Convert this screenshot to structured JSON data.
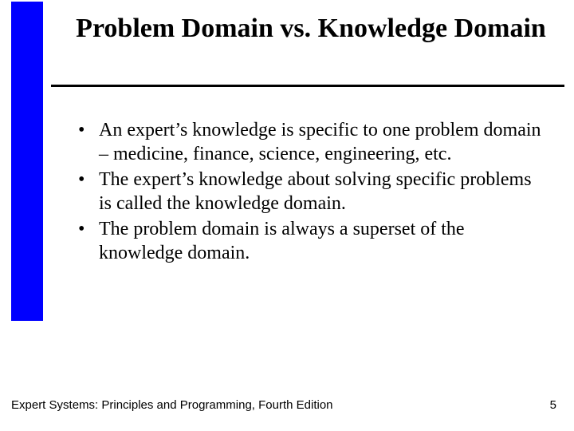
{
  "accent_color": "#0000ff",
  "rule_color": "#000000",
  "background_color": "#ffffff",
  "text_color": "#000000",
  "title_font_family": "Times New Roman",
  "body_font_family": "Times New Roman",
  "footer_font_family": "Arial",
  "title_fontsize": 34,
  "body_fontsize": 24,
  "footer_fontsize": 15,
  "title": "Problem Domain vs. Knowledge Domain",
  "bullets": [
    "An expert’s knowledge is specific to one problem domain – medicine, finance, science, engineering, etc.",
    "The expert’s knowledge about solving specific problems is called the knowledge domain.",
    "The problem domain is always a superset of the knowledge domain."
  ],
  "footer": {
    "left": "Expert Systems: Principles and Programming, Fourth Edition",
    "page_number": "5"
  }
}
